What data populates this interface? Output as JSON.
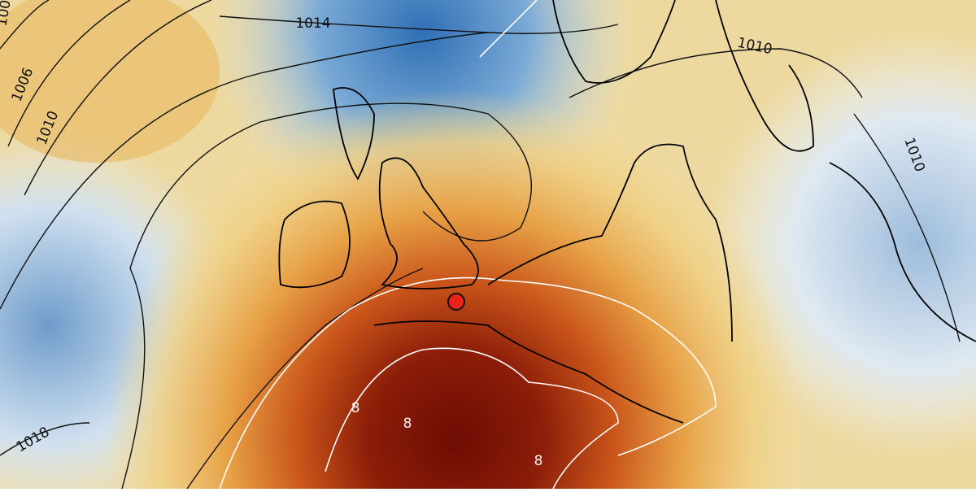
{
  "map": {
    "isobar_labels": [
      "1014",
      "1010",
      "1006",
      "1010",
      "1018",
      "1010",
      "100"
    ],
    "isotherm_labels": [
      "8",
      "8",
      "8"
    ]
  }
}
